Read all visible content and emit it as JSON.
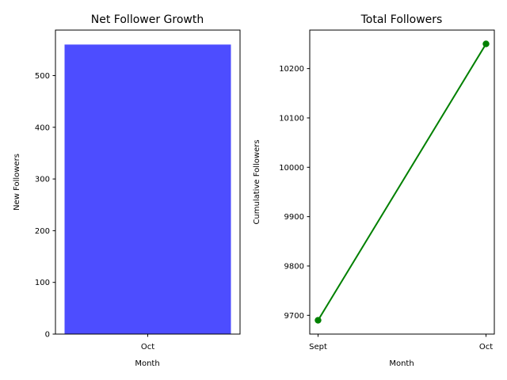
{
  "chart_data": [
    {
      "type": "bar",
      "title": "Net Follower Growth",
      "xlabel": "Month",
      "ylabel": "New Followers",
      "categories": [
        "Oct"
      ],
      "values": [
        560
      ],
      "ylim": [
        0,
        588
      ],
      "yticks": [
        0,
        100,
        200,
        300,
        400,
        500
      ],
      "bar_color": "#4d4dff",
      "grid": false
    },
    {
      "type": "line",
      "title": "Total Followers",
      "xlabel": "Month",
      "ylabel": "Cumulative Followers",
      "categories": [
        "Sept",
        "Oct"
      ],
      "values": [
        9690,
        10250
      ],
      "ylim": [
        9662,
        10278
      ],
      "yticks": [
        9700,
        9800,
        9900,
        10000,
        10100,
        10200
      ],
      "line_color": "#008000",
      "marker": "circle",
      "grid": false
    }
  ]
}
